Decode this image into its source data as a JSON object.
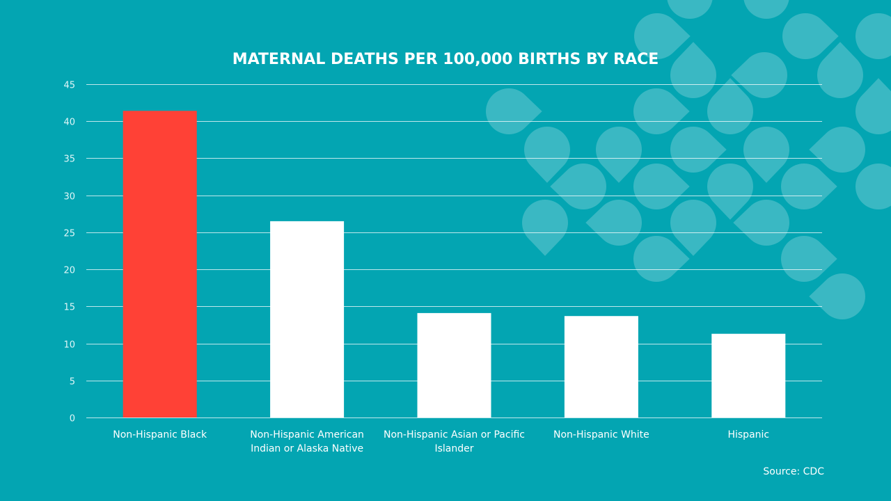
{
  "chart_data": {
    "type": "bar",
    "title": "MATERNAL DEATHS PER 100,000 BIRTHS BY RACE",
    "categories": [
      [
        "Non-Hispanic Black"
      ],
      [
        "Non-Hispanic American",
        "Indian or Alaska Native"
      ],
      [
        "Non-Hispanic Asian or Pacific",
        "Islander"
      ],
      [
        "Non-Hispanic White"
      ],
      [
        "Hispanic"
      ]
    ],
    "values": [
      41.4,
      26.5,
      14.1,
      13.7,
      11.3
    ],
    "bar_colors": [
      "#ff4136",
      "#ffffff",
      "#ffffff",
      "#ffffff",
      "#ffffff"
    ],
    "ylim": [
      0,
      45
    ],
    "yticks": [
      0,
      5,
      10,
      15,
      20,
      25,
      30,
      35,
      40,
      45
    ],
    "grid": true,
    "legend": "none"
  },
  "footer": {
    "source": "Source: CDC"
  },
  "colors": {
    "background": "#03a5b2",
    "highlight": "#ff4136",
    "bars": "#ffffff"
  }
}
